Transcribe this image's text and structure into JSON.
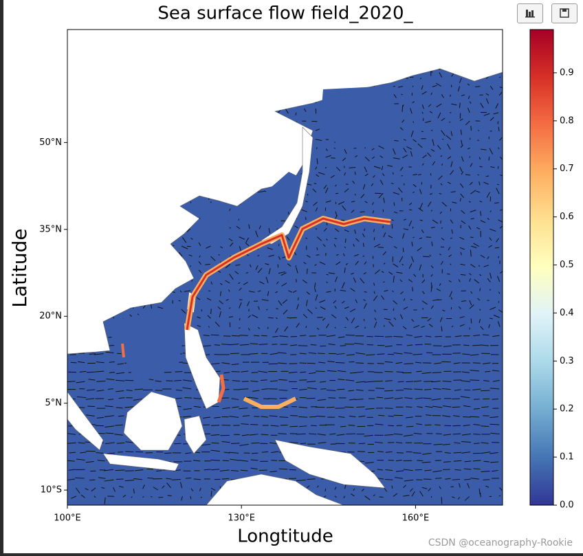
{
  "chart_data": {
    "type": "map",
    "title": "Sea surface flow field_2020_",
    "xlabel": "Longtitude",
    "ylabel": "Latitude",
    "xlim": [
      100,
      175
    ],
    "ylim": [
      -12.6,
      69.5
    ],
    "xticks": [
      {
        "value": 100,
        "label": "100°E"
      },
      {
        "value": 130,
        "label": "130°E"
      },
      {
        "value": 160,
        "label": "160°E"
      }
    ],
    "yticks": [
      {
        "value": 50,
        "label": "50°N"
      },
      {
        "value": 35,
        "label": "35°N"
      },
      {
        "value": 20,
        "label": "20°N"
      },
      {
        "value": 5,
        "label": "5°N"
      },
      {
        "value": -10,
        "label": "10°S"
      }
    ],
    "colorbar": {
      "lim": [
        0,
        0.99
      ],
      "ticks": [
        {
          "value": 0,
          "label": "0.0"
        },
        0.1,
        0.2,
        0.3,
        0.4,
        0.5,
        0.6,
        0.7,
        0.8,
        0.9
      ],
      "colors": [
        "#313695",
        "#4575b4",
        "#74add1",
        "#abd9e9",
        "#e0f3f8",
        "#ffffbf",
        "#fee090",
        "#fdae61",
        "#f46d43",
        "#d73027",
        "#a50026"
      ]
    },
    "watermark": "CSDN @oceanography-Rookie"
  }
}
